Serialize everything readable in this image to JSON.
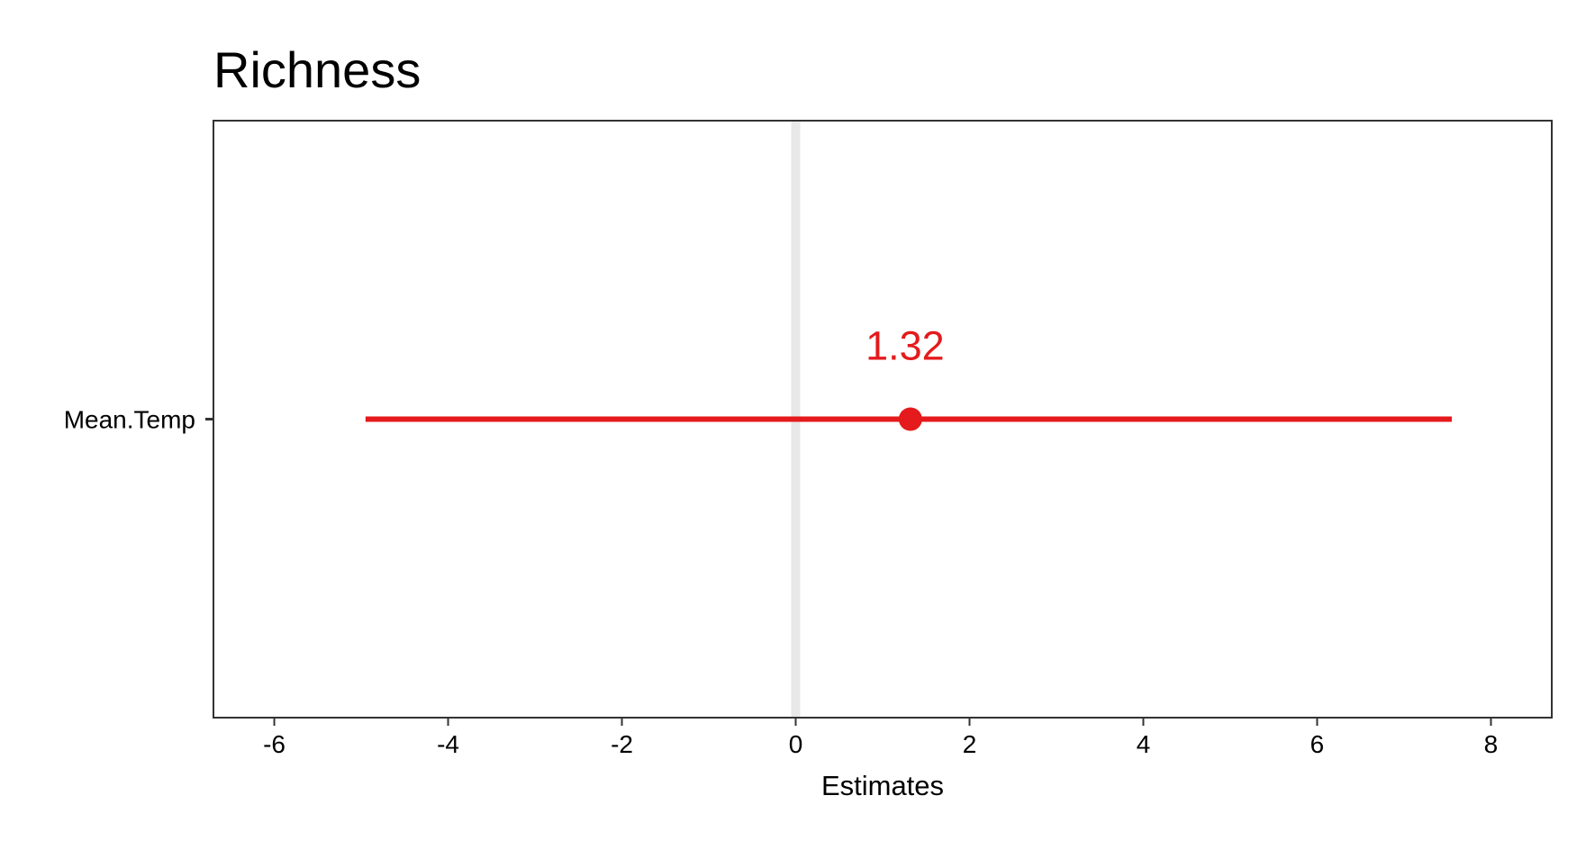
{
  "chart_data": {
    "type": "scatter",
    "title": "Richness",
    "xlabel": "Estimates",
    "ylabel": "",
    "xlim": [
      -6.7,
      8.7
    ],
    "x_ticks": [
      -6,
      -4,
      -2,
      0,
      2,
      4,
      6,
      8
    ],
    "x_tick_labels": [
      "-6",
      "-4",
      "-2",
      "0",
      "2",
      "4",
      "6",
      "8"
    ],
    "categories": [
      "Mean.Temp"
    ],
    "series": [
      {
        "values": [
          {
            "term": "Mean.Temp",
            "estimate": 1.32,
            "conf_low": -4.95,
            "conf_high": 7.55,
            "label": "1.32"
          }
        ]
      }
    ],
    "reference_line": 0,
    "grid": false,
    "legend": "none",
    "colors": {
      "point": "#e41a1c",
      "reference_line": "#e8e8e8",
      "axis": "#333333"
    }
  }
}
